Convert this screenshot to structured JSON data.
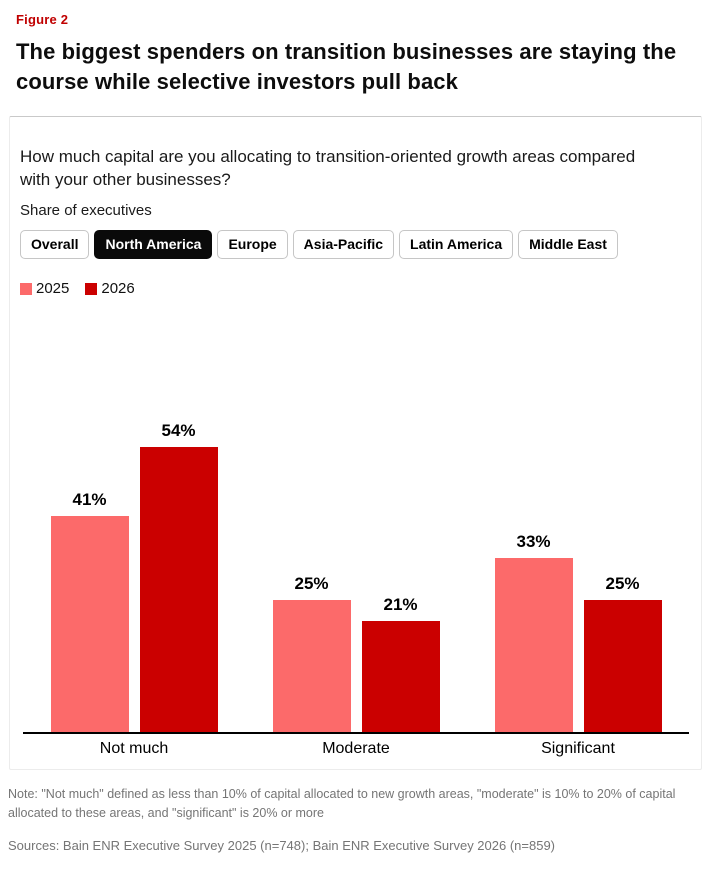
{
  "figure": {
    "label": "Figure 2"
  },
  "title": "The biggest spenders on transition businesses are staying the course while selective investors pull back",
  "chart": {
    "question": "How much capital are you allocating to transition-oriented growth areas compared with your other businesses?",
    "unit": "Share of executives"
  },
  "tabs": {
    "items": [
      "Overall",
      "North America",
      "Europe",
      "Asia-Pacific",
      "Latin America",
      "Middle East"
    ],
    "selected": "North America"
  },
  "chart_data": {
    "type": "bar",
    "categories": [
      "Not much",
      "Moderate",
      "Significant"
    ],
    "series": [
      {
        "name": "2025",
        "color": "#fc6a6a",
        "values": [
          41,
          25,
          33
        ]
      },
      {
        "name": "2026",
        "color": "#cb0000",
        "values": [
          54,
          21,
          25
        ]
      }
    ],
    "value_suffix": "%",
    "title": "How much capital are you allocating to transition-oriented growth areas compared with your other businesses?",
    "ylabel": "Share of executives",
    "ylim": [
      0,
      59
    ],
    "grid": false,
    "data_labels": true,
    "legend_position": "top-left",
    "selected_tab": "North America"
  },
  "footer": {
    "note": "Note: \"Not much\" defined as less than 10% of capital allocated to new growth areas, \"moderate\" is 10% to 20% of capital allocated to these areas, and \"significant\" is 20% or more",
    "sources": "Sources: Bain ENR Executive Survey 2025 (n=748); Bain ENR Executive Survey 2026 (n=859)"
  }
}
